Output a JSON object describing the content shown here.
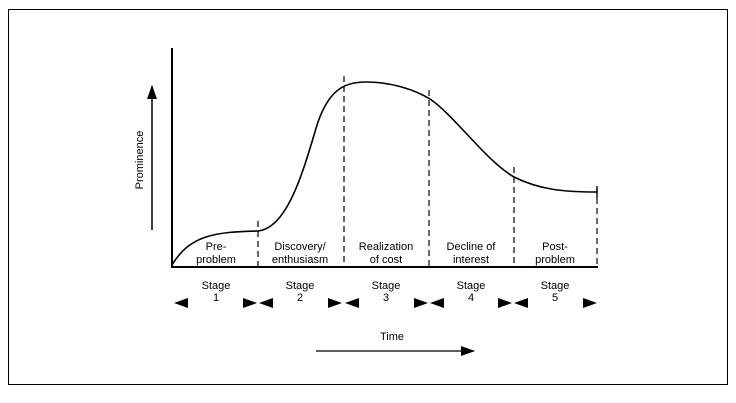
{
  "diagram": {
    "y_axis_label": "Prominence",
    "x_axis_label": "Time",
    "stages": [
      {
        "phase_label": [
          "Pre-",
          "problem"
        ],
        "stage_label": [
          "Stage",
          "1"
        ]
      },
      {
        "phase_label": [
          "Discovery/",
          "enthusiasm"
        ],
        "stage_label": [
          "Stage",
          "2"
        ]
      },
      {
        "phase_label": [
          "Realization",
          "of cost"
        ],
        "stage_label": [
          "Stage",
          "3"
        ]
      },
      {
        "phase_label": [
          "Decline of",
          "interest"
        ],
        "stage_label": [
          "Stage",
          "4"
        ]
      },
      {
        "phase_label": [
          "Post-",
          "problem"
        ],
        "stage_label": [
          "Stage",
          "5"
        ]
      }
    ]
  }
}
